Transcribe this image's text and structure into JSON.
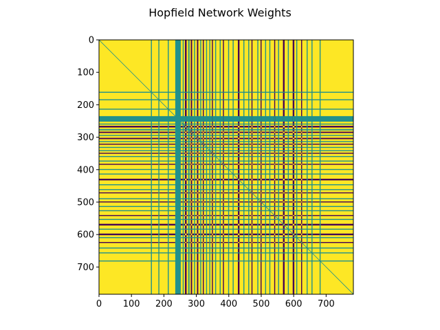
{
  "chart_data": {
    "type": "heatmap",
    "title": "Hopfield Network Weights",
    "xlabel": "",
    "ylabel": "",
    "size": 784,
    "xlim": [
      0,
      784
    ],
    "ylim": [
      784,
      0
    ],
    "x_ticks": [
      0,
      100,
      200,
      300,
      400,
      500,
      600,
      700
    ],
    "y_ticks": [
      0,
      100,
      200,
      300,
      400,
      500,
      600,
      700
    ],
    "colormap": "viridis",
    "colors": {
      "high": "#fde725",
      "mid": "#21918c",
      "low": "#440154",
      "diagonal": "#21918c"
    },
    "grid": false,
    "legend": "none",
    "stripes": [
      {
        "start": 160,
        "end": 163,
        "level": "mid"
      },
      {
        "start": 183,
        "end": 186,
        "level": "mid"
      },
      {
        "start": 212,
        "end": 215,
        "level": "mid"
      },
      {
        "start": 235,
        "end": 252,
        "level": "mid"
      },
      {
        "start": 258,
        "end": 261,
        "level": "mid"
      },
      {
        "start": 265,
        "end": 270,
        "level": "low"
      },
      {
        "start": 275,
        "end": 279,
        "level": "mid"
      },
      {
        "start": 283,
        "end": 287,
        "level": "low"
      },
      {
        "start": 293,
        "end": 296,
        "level": "mid"
      },
      {
        "start": 302,
        "end": 306,
        "level": "low"
      },
      {
        "start": 312,
        "end": 315,
        "level": "mid"
      },
      {
        "start": 320,
        "end": 323,
        "level": "low"
      },
      {
        "start": 330,
        "end": 333,
        "level": "mid"
      },
      {
        "start": 340,
        "end": 343,
        "level": "mid"
      },
      {
        "start": 348,
        "end": 351,
        "level": "low"
      },
      {
        "start": 358,
        "end": 361,
        "level": "mid"
      },
      {
        "start": 372,
        "end": 375,
        "level": "mid"
      },
      {
        "start": 382,
        "end": 385,
        "level": "low"
      },
      {
        "start": 398,
        "end": 401,
        "level": "mid"
      },
      {
        "start": 412,
        "end": 415,
        "level": "mid"
      },
      {
        "start": 428,
        "end": 433,
        "level": "low"
      },
      {
        "start": 445,
        "end": 448,
        "level": "mid"
      },
      {
        "start": 460,
        "end": 463,
        "level": "mid"
      },
      {
        "start": 470,
        "end": 473,
        "level": "low"
      },
      {
        "start": 488,
        "end": 491,
        "level": "mid"
      },
      {
        "start": 498,
        "end": 501,
        "level": "low"
      },
      {
        "start": 512,
        "end": 515,
        "level": "mid"
      },
      {
        "start": 525,
        "end": 528,
        "level": "mid"
      },
      {
        "start": 540,
        "end": 543,
        "level": "low"
      },
      {
        "start": 552,
        "end": 555,
        "level": "mid"
      },
      {
        "start": 567,
        "end": 572,
        "level": "low"
      },
      {
        "start": 582,
        "end": 585,
        "level": "mid"
      },
      {
        "start": 597,
        "end": 602,
        "level": "low"
      },
      {
        "start": 608,
        "end": 611,
        "level": "mid"
      },
      {
        "start": 623,
        "end": 626,
        "level": "low"
      },
      {
        "start": 640,
        "end": 643,
        "level": "mid"
      },
      {
        "start": 655,
        "end": 658,
        "level": "mid"
      },
      {
        "start": 680,
        "end": 683,
        "level": "mid"
      }
    ]
  }
}
